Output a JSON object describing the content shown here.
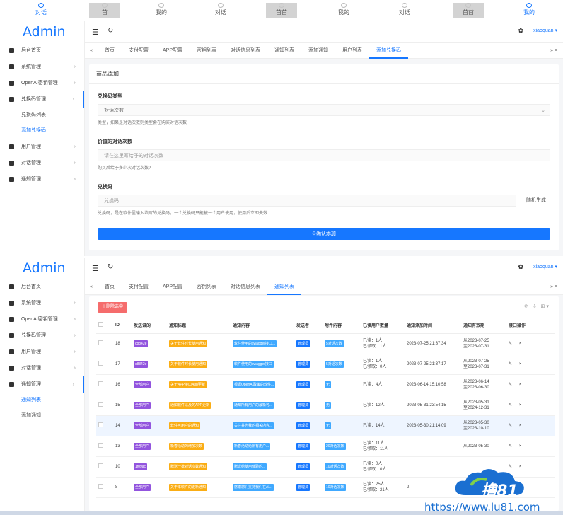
{
  "top_nav": [
    {
      "label": "对话",
      "active": true,
      "boxed": false
    },
    {
      "label": "首",
      "active": false,
      "boxed": true
    },
    {
      "label": "我的",
      "active": false,
      "boxed": false
    },
    {
      "label": "对话",
      "active": false,
      "boxed": false
    },
    {
      "label": "首首",
      "active": false,
      "boxed": true
    },
    {
      "label": "我的",
      "active": false,
      "boxed": false
    },
    {
      "label": "对话",
      "active": false,
      "boxed": false
    },
    {
      "label": "首首",
      "active": false,
      "boxed": true
    },
    {
      "label": "我的",
      "active": true,
      "boxed": false
    }
  ],
  "brand": "Admin",
  "user": "xiaoquan",
  "menu_top": [
    {
      "label": "后台首页",
      "icon": "home-icon",
      "arrow": false
    },
    {
      "label": "系统管理",
      "icon": "settings-icon",
      "arrow": true
    },
    {
      "label": "OpenAI密钥管理",
      "icon": "key-icon",
      "arrow": true
    },
    {
      "label": "兑换码管理",
      "icon": "gift-icon",
      "arrow": true,
      "open": true
    },
    {
      "label": "兑换码列表",
      "sub": true
    },
    {
      "label": "添加兑换码",
      "sub": true,
      "active": true
    },
    {
      "label": "用户管理",
      "icon": "user-icon",
      "arrow": true
    },
    {
      "label": "对话管理",
      "icon": "chat-icon",
      "arrow": true
    },
    {
      "label": "通知管理",
      "icon": "notice-icon",
      "arrow": true
    }
  ],
  "menu_bottom": [
    {
      "label": "后台首页",
      "icon": "home-icon",
      "arrow": false
    },
    {
      "label": "系统管理",
      "icon": "settings-icon",
      "arrow": true
    },
    {
      "label": "OpenAI密钥管理",
      "icon": "key-icon",
      "arrow": true
    },
    {
      "label": "兑换码管理",
      "icon": "gift-icon",
      "arrow": true
    },
    {
      "label": "用户管理",
      "icon": "user-icon",
      "arrow": true
    },
    {
      "label": "对话管理",
      "icon": "chat-icon",
      "arrow": true
    },
    {
      "label": "通知管理",
      "icon": "notice-icon",
      "arrow": true,
      "open": true
    },
    {
      "label": "通知列表",
      "sub": true,
      "active": true
    },
    {
      "label": "添加通知",
      "sub": true
    }
  ],
  "tabs_top": [
    {
      "label": "首页",
      "active": false
    },
    {
      "label": "支付配置",
      "active": false
    },
    {
      "label": "APP配置",
      "active": false
    },
    {
      "label": "密钥列表",
      "active": false
    },
    {
      "label": "对话信息列表",
      "active": false
    },
    {
      "label": "通知列表",
      "active": false
    },
    {
      "label": "添加通知",
      "active": false
    },
    {
      "label": "用户列表",
      "active": false
    },
    {
      "label": "添加兑换码",
      "active": true
    }
  ],
  "tabs_bottom": [
    {
      "label": "首页",
      "active": false
    },
    {
      "label": "支付配置",
      "active": false
    },
    {
      "label": "APP配置",
      "active": false
    },
    {
      "label": "密钥列表",
      "active": false
    },
    {
      "label": "对话信息列表",
      "active": false
    },
    {
      "label": "通知列表",
      "active": true
    }
  ],
  "form": {
    "title": "商品添加",
    "type_label": "兑换码类型",
    "type_value": "对话次数",
    "type_help": "类型，如果是对话次数则类型会在购买对话次数",
    "count_label": "价值的对话次数",
    "count_placeholder": "请在这里写给予的对话次数",
    "count_help": "购买后给予多少次对话次数?",
    "code_label": "兑换码",
    "code_placeholder": "兑换码",
    "code_gen": "随机生成",
    "code_help": "兑换码，是在软件里输入填写的兑换码，一个兑换码只能被一个用户使用，使用后立即失效",
    "submit": "确认添加"
  },
  "table": {
    "delete_btn": "删除选中",
    "columns": [
      "",
      "ID",
      "发送谁的",
      "通知标题",
      "通知内容",
      "发送者",
      "附件内容",
      "已读用户数量",
      "通知添加时间",
      "通知有效期",
      "接口操作"
    ],
    "rows": [
      {
        "id": "18",
        "to": "c8842e",
        "to_color": "purple",
        "title": "关于软件时长使用通知",
        "content": "软件使用的swagger接口...",
        "sender": "管理员",
        "attach": "5对话次数",
        "read": "已读：1人\n已领取：1人",
        "added": "2023-07-25 21:37:34",
        "valid": "从2023-07-25\n至2023-07-31",
        "hl": false
      },
      {
        "id": "17",
        "to": "c8842e",
        "to_color": "purple",
        "title": "关于软件时长使用通知",
        "content": "软件使用的swagger接口",
        "sender": "管理员",
        "attach": "5对话次数",
        "read": "已读：1人\n已领取：0人",
        "added": "2023-07-25 21:37:17",
        "valid": "从2023-07-25\n至2023-07-31",
        "hl": false
      },
      {
        "id": "16",
        "to": "全部用户",
        "to_color": "purple",
        "title": "关于APP接口App更新",
        "content": "根据OpenAI政策的软件...",
        "sender": "管理员",
        "attach": "无",
        "read": "已读：4人",
        "added": "2023-06-14 15:10:58",
        "valid": "从2023-06-14\n至2023-06-30",
        "hl": false
      },
      {
        "id": "15",
        "to": "全部用户",
        "to_color": "purple",
        "title": "通知软件以及的APP更新",
        "content": "通知所有用户的最新可...",
        "sender": "管理员",
        "attach": "无",
        "read": "已读：12人",
        "added": "2023-05-31 23:54:15",
        "valid": "从2023-05-31\n至2024-12-31",
        "hl": false
      },
      {
        "id": "14",
        "to": "全部用户",
        "to_color": "purple",
        "title": "软件可用户的通知",
        "content": "关注并为我的相关内容...",
        "sender": "管理员",
        "attach": "无",
        "read": "已读：14人",
        "added": "2023-05-30 21:14:09",
        "valid": "从2023-05-30\n至2023-10-10",
        "hl": true
      },
      {
        "id": "13",
        "to": "全部用户",
        "to_color": "purple",
        "title": "新春活动的增加次数",
        "content": "新春活动给所有用户...",
        "sender": "管理员",
        "attach": "20对话次数",
        "read": "已读：11人\n已领取：11人",
        "added": "",
        "valid": "从2023-05-30",
        "hl": false
      },
      {
        "id": "10",
        "to": "1f09ac",
        "to_color": "purple",
        "title": "赠送一批对话次数通知",
        "content": "赠送给使用体验的...",
        "sender": "管理员",
        "attach": "10对话次数",
        "read": "已读：0人\n已领取：0人",
        "added": "",
        "valid": "",
        "hl": false
      },
      {
        "id": "8",
        "to": "全部用户",
        "to_color": "purple",
        "title": "关于本软件的更新通知",
        "content": "感谢您们支持我们在AI...",
        "sender": "管理员",
        "attach": "10对话次数",
        "read": "已读：25人\n已领取：21人",
        "added": "2",
        "valid": "",
        "hl": false
      }
    ],
    "ops": "✎ ×"
  },
  "watermark": {
    "url": "https://www.lu81.com",
    "brand": "撸81"
  },
  "colors": {
    "accent": "#1677ff",
    "danger": "#f56c6c",
    "purple": "#9254de",
    "yellow": "#faad14"
  }
}
